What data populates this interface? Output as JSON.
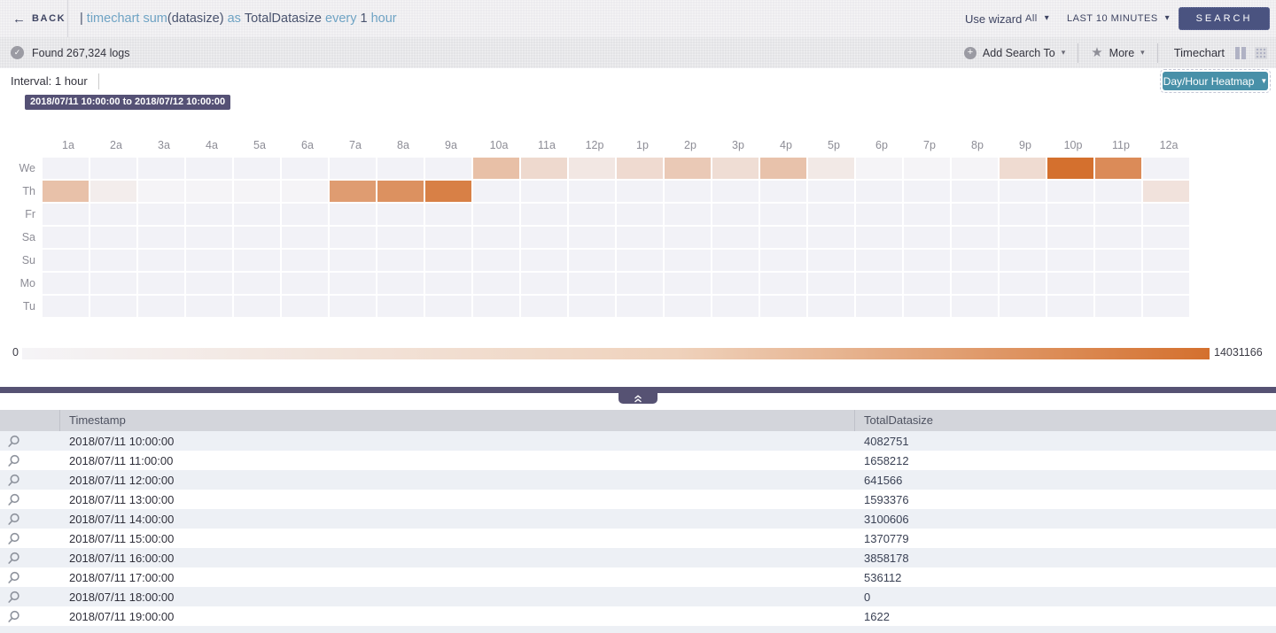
{
  "topbar": {
    "back_label": "BACK",
    "query_tokens": [
      {
        "text": "| ",
        "type": "plain"
      },
      {
        "text": "timechart ",
        "type": "keyword"
      },
      {
        "text": "sum",
        "type": "keyword"
      },
      {
        "text": "(datasize) ",
        "type": "plain"
      },
      {
        "text": "as ",
        "type": "keyword"
      },
      {
        "text": "TotalDatasize ",
        "type": "plain"
      },
      {
        "text": "every ",
        "type": "keyword"
      },
      {
        "text": "1 ",
        "type": "plain"
      },
      {
        "text": "hour",
        "type": "keyword"
      }
    ],
    "use_wizard": "Use wizard",
    "scope_value": "All",
    "time_range_value": "LAST 10 MINUTES",
    "search_label": "SEARCH"
  },
  "toolbar": {
    "found_label": "Found 267,324 logs",
    "add_search_to_label": "Add Search To",
    "more_label": "More",
    "view_label": "Timechart"
  },
  "chart_panel": {
    "interval_label": "Interval: 1 hour",
    "view_selector_label": "Day/Hour Heatmap",
    "tooltip": "2018/07/11 10:00:00 to 2018/07/12 10:00:00",
    "legend_min": "0",
    "legend_max": "14031166"
  },
  "chart_data": {
    "type": "heatmap",
    "title": "Day/Hour Heatmap of TotalDatasize (sum of datasize per 1 hour)",
    "time_span": "2018/07/11 10:00:00 to 2018/07/12 10:00:00",
    "columns": [
      "1a",
      "2a",
      "3a",
      "4a",
      "5a",
      "6a",
      "7a",
      "8a",
      "9a",
      "10a",
      "11a",
      "12p",
      "1p",
      "2p",
      "3p",
      "4p",
      "5p",
      "6p",
      "7p",
      "8p",
      "9p",
      "10p",
      "11p",
      "12a"
    ],
    "rows": [
      "We",
      "Th",
      "Fr",
      "Sa",
      "Su",
      "Mo",
      "Tu"
    ],
    "min": 0,
    "max": 14031166,
    "values": [
      [
        null,
        null,
        null,
        null,
        null,
        null,
        null,
        null,
        null,
        4082751,
        1658212,
        641566,
        1593376,
        3100606,
        1370779,
        3858178,
        536112,
        0,
        1622,
        0,
        1500000,
        14031166,
        10300000,
        null
      ],
      [
        4000000,
        280000,
        0,
        0,
        0,
        0,
        8200000,
        9600000,
        11800000,
        null,
        null,
        null,
        null,
        null,
        null,
        null,
        null,
        null,
        null,
        null,
        null,
        null,
        null,
        950000
      ],
      [
        null,
        null,
        null,
        null,
        null,
        null,
        null,
        null,
        null,
        null,
        null,
        null,
        null,
        null,
        null,
        null,
        null,
        null,
        null,
        null,
        null,
        null,
        null,
        null
      ],
      [
        null,
        null,
        null,
        null,
        null,
        null,
        null,
        null,
        null,
        null,
        null,
        null,
        null,
        null,
        null,
        null,
        null,
        null,
        null,
        null,
        null,
        null,
        null,
        null
      ],
      [
        null,
        null,
        null,
        null,
        null,
        null,
        null,
        null,
        null,
        null,
        null,
        null,
        null,
        null,
        null,
        null,
        null,
        null,
        null,
        null,
        null,
        null,
        null,
        null
      ],
      [
        null,
        null,
        null,
        null,
        null,
        null,
        null,
        null,
        null,
        null,
        null,
        null,
        null,
        null,
        null,
        null,
        null,
        null,
        null,
        null,
        null,
        null,
        null,
        null
      ],
      [
        null,
        null,
        null,
        null,
        null,
        null,
        null,
        null,
        null,
        null,
        null,
        null,
        null,
        null,
        null,
        null,
        null,
        null,
        null,
        null,
        null,
        null,
        null,
        null
      ]
    ]
  },
  "table": {
    "col_timestamp": "Timestamp",
    "col_value": "TotalDatasize",
    "rows": [
      {
        "timestamp": "2018/07/11 10:00:00",
        "value": "4082751"
      },
      {
        "timestamp": "2018/07/11 11:00:00",
        "value": "1658212"
      },
      {
        "timestamp": "2018/07/11 12:00:00",
        "value": "641566"
      },
      {
        "timestamp": "2018/07/11 13:00:00",
        "value": "1593376"
      },
      {
        "timestamp": "2018/07/11 14:00:00",
        "value": "3100606"
      },
      {
        "timestamp": "2018/07/11 15:00:00",
        "value": "1370779"
      },
      {
        "timestamp": "2018/07/11 16:00:00",
        "value": "3858178"
      },
      {
        "timestamp": "2018/07/11 17:00:00",
        "value": "536112"
      },
      {
        "timestamp": "2018/07/11 18:00:00",
        "value": "0"
      },
      {
        "timestamp": "2018/07/11 19:00:00",
        "value": "1622"
      }
    ]
  },
  "colors": {
    "heat_empty": "#f2f2f7",
    "heat_start": "#f5f4f7",
    "heat_mid": "#efd2bc",
    "heat_max": "#d4702e",
    "purple": "#565273",
    "teal": "#4890a8",
    "search_button": "#4a5380"
  }
}
